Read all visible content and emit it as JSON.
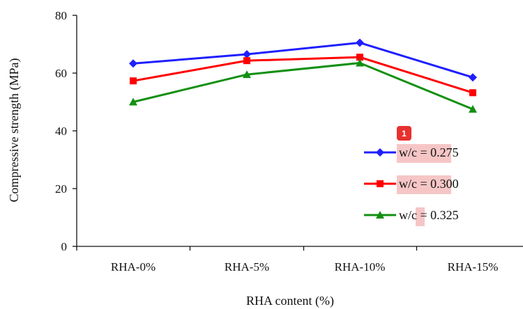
{
  "chart_data": {
    "type": "line",
    "categories": [
      "RHA-0%",
      "RHA-5%",
      "RHA-10%",
      "RHA-15%"
    ],
    "series": [
      {
        "name": "w/c = 0.275",
        "color": "#1f1fff",
        "marker": "diamond",
        "values": [
          63.3,
          66.5,
          70.5,
          58.5
        ]
      },
      {
        "name": "w/c = 0.300",
        "color": "#ff0000",
        "marker": "square",
        "values": [
          57.3,
          64.3,
          65.5,
          53.2
        ]
      },
      {
        "name": "w/c = 0.325",
        "color": "#129012",
        "marker": "triangle",
        "values": [
          50.0,
          59.5,
          63.5,
          47.5
        ]
      }
    ],
    "xlabel": "RHA content (%)",
    "ylabel": "Compressive strength (MPa)",
    "ylim": [
      0,
      80
    ],
    "yticks": [
      0,
      20,
      40,
      60,
      80
    ],
    "grid": false,
    "legend_position": "right"
  },
  "annotation": {
    "badge": "1",
    "highlight_color": "#f6c6c6",
    "badge_color": "#e8312f"
  }
}
